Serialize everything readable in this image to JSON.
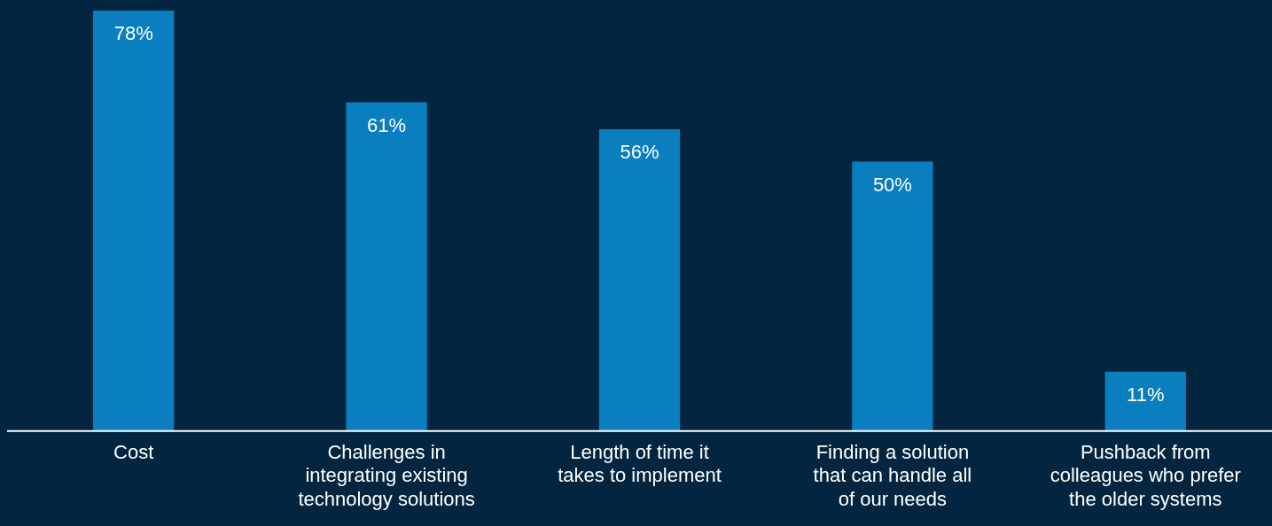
{
  "chart_data": {
    "type": "bar",
    "categories": [
      "Cost",
      "Challenges in integrating existing technology solutions",
      "Length of time it takes to implement",
      "Finding a solution that can handle all of our needs",
      "Pushback from colleagues who prefer the older systems"
    ],
    "values": [
      78,
      61,
      56,
      50,
      11
    ],
    "value_labels": [
      "78%",
      "61%",
      "56%",
      "50%",
      "11%"
    ],
    "color": "#0a7ebf",
    "tick_labels": "x",
    "grid": false,
    "legend": false
  }
}
